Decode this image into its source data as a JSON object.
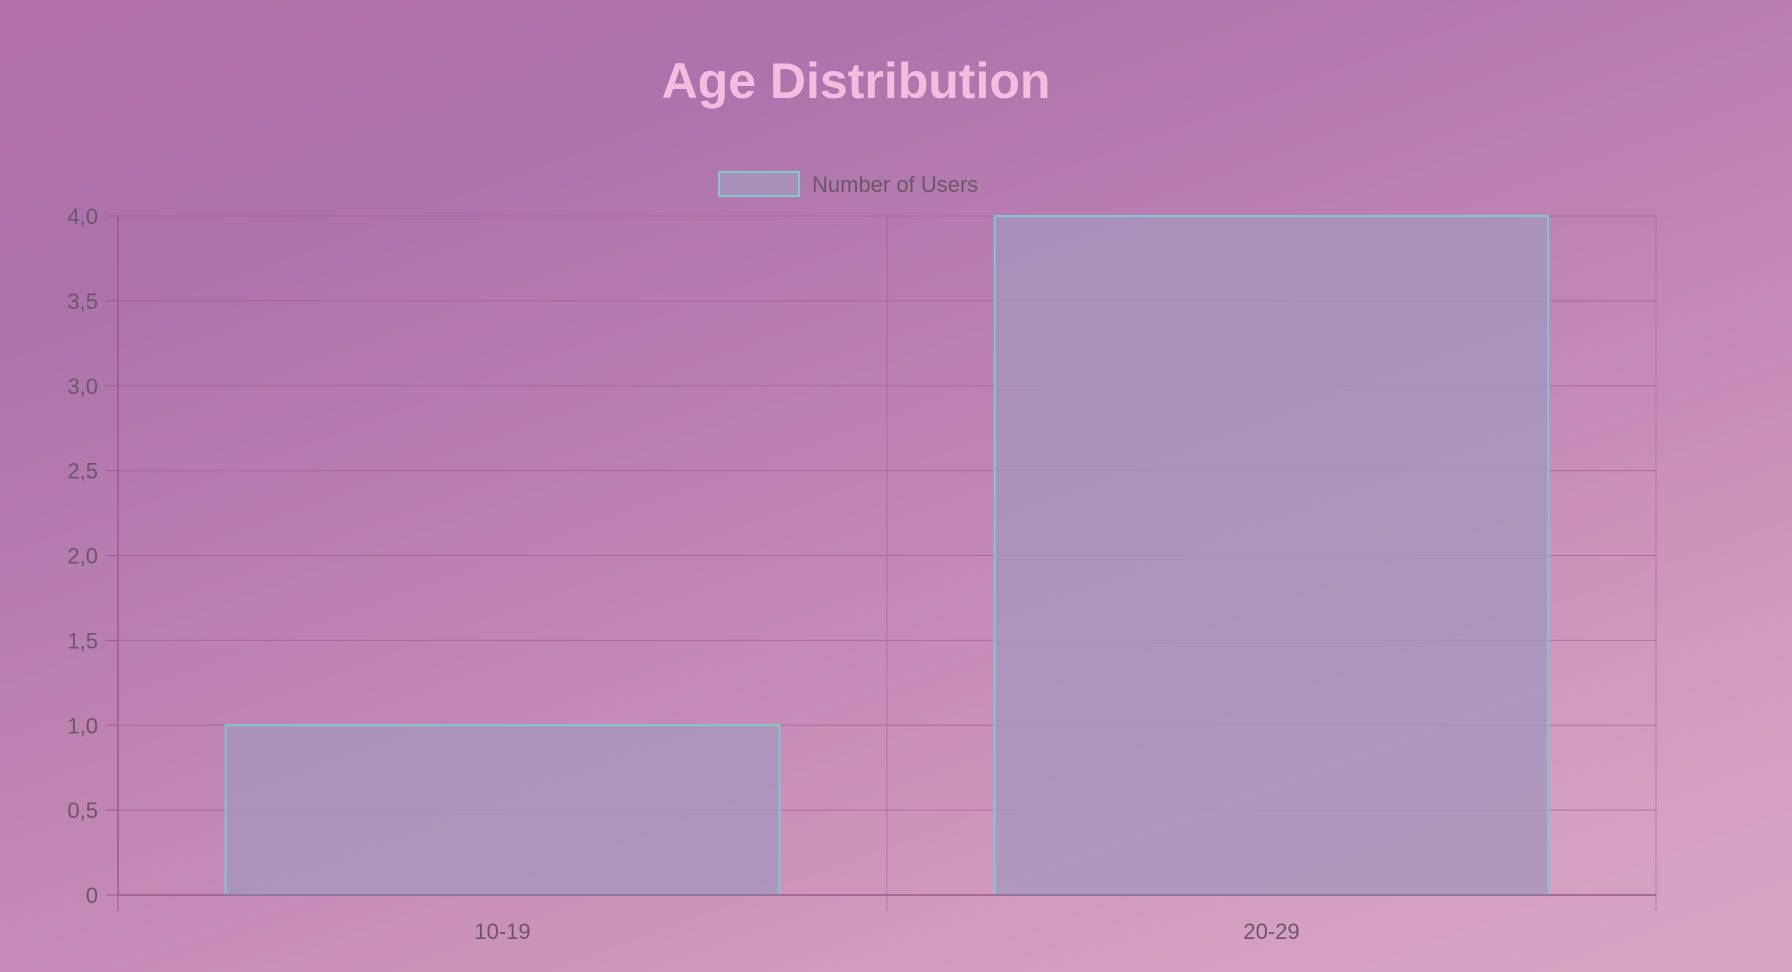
{
  "chart_data": {
    "type": "bar",
    "title": "Age Distribution",
    "categories": [
      "10-19",
      "20-29"
    ],
    "series": [
      {
        "name": "Number of Users",
        "values": [
          1,
          4
        ]
      }
    ],
    "yticks": [
      "0",
      "0,5",
      "1,0",
      "1,5",
      "2,0",
      "2,5",
      "3,0",
      "3,5",
      "4,0"
    ],
    "ylim": [
      0,
      4
    ],
    "grid": true,
    "legend_position": "top",
    "colors": {
      "bar_fill": "#a596bc",
      "bar_border": "#7fc8cf",
      "title": "#f3bde0",
      "grid": "#9a5a8e",
      "text": "#6b5866"
    }
  }
}
